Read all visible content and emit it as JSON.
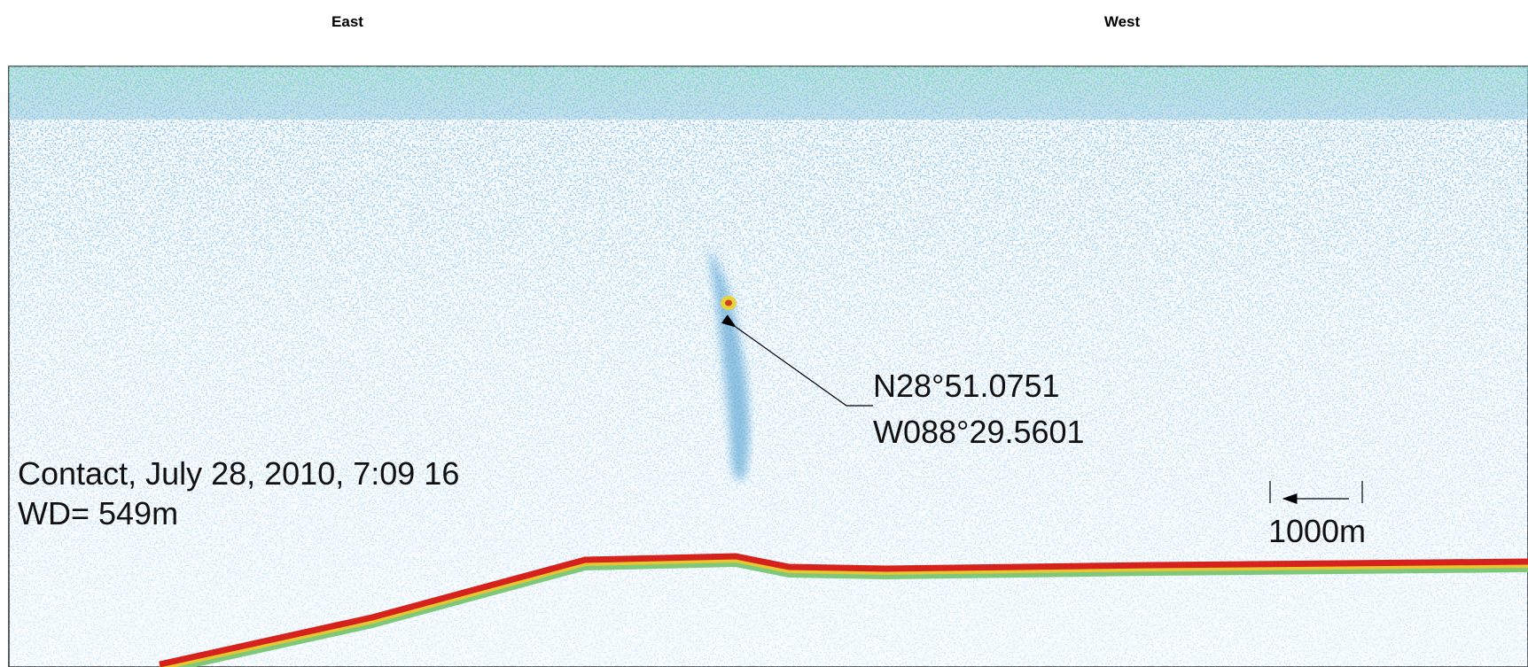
{
  "header": {
    "left": "East",
    "right": "West"
  },
  "annotations": {
    "contact": "Contact, July 28, 2010, 7:09 16",
    "depth": "WD= 549m",
    "latitude": "N28°51.0751",
    "longitude": "W088°29.5601"
  },
  "scale_bar": "1000m"
}
